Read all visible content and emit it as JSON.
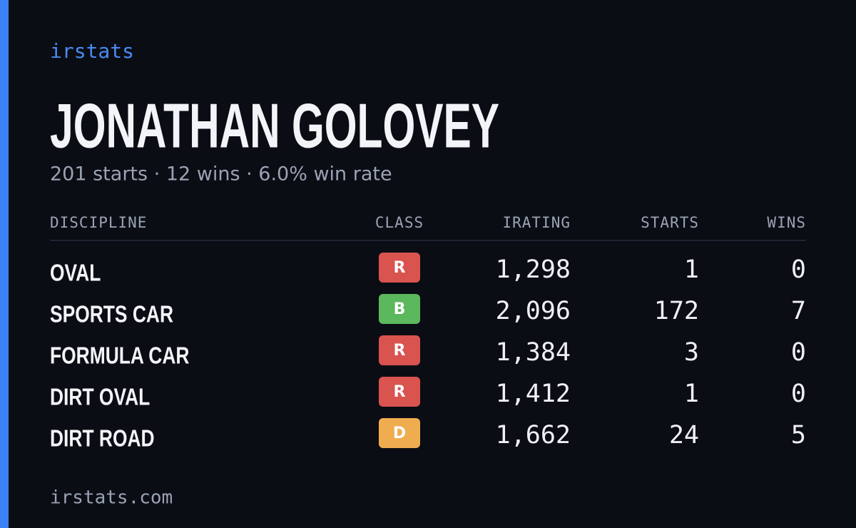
{
  "brand": "irstats",
  "title": "JONATHAN GOLOVEY",
  "subtitle": "201 starts · 12 wins · 6.0% win rate",
  "table": {
    "headers": [
      "DISCIPLINE",
      "CLASS",
      "IRATING",
      "STARTS",
      "WINS"
    ],
    "rows": [
      [
        "OVAL",
        "R",
        "1,298",
        "1",
        "0"
      ],
      [
        "SPORTS CAR",
        "B",
        "2,096",
        "172",
        "7"
      ],
      [
        "FORMULA CAR",
        "R",
        "1,384",
        "3",
        "0"
      ],
      [
        "DIRT OVAL",
        "R",
        "1,412",
        "1",
        "0"
      ],
      [
        "DIRT ROAD",
        "D",
        "1,662",
        "24",
        "5"
      ]
    ]
  },
  "footer": "irstats.com"
}
